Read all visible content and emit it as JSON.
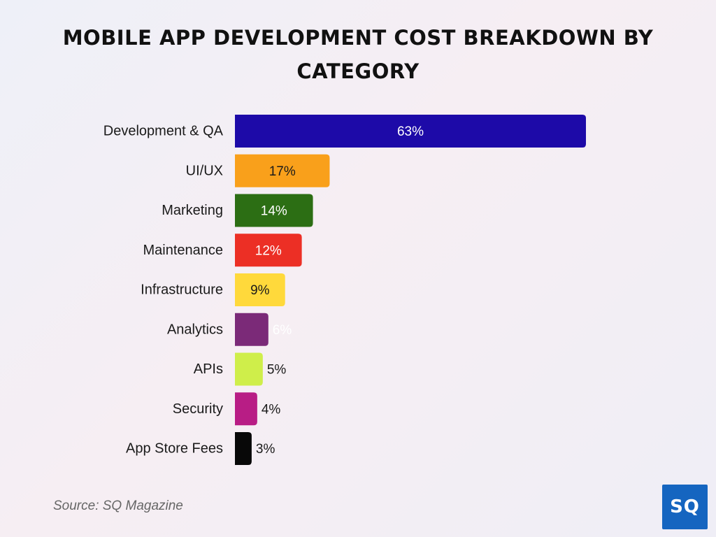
{
  "chart_data": {
    "type": "bar",
    "orientation": "horizontal",
    "title": "MOBILE APP DEVELOPMENT COST BREAKDOWN BY CATEGORY",
    "categories": [
      "Development & QA",
      "UI/UX",
      "Marketing",
      "Maintenance",
      "Infrastructure",
      "Analytics",
      "APIs",
      "Security",
      "App Store Fees"
    ],
    "values": [
      63,
      17,
      14,
      12,
      9,
      6,
      5,
      4,
      3
    ],
    "value_labels": [
      "63%",
      "17%",
      "14%",
      "12%",
      "9%",
      "6%",
      "5%",
      "4%",
      "3%"
    ],
    "colors": [
      "#1d0aa8",
      "#f9a01b",
      "#2c6e14",
      "#ec2f25",
      "#ffd93b",
      "#7b2a78",
      "#cfee4a",
      "#b81d85",
      "#080808"
    ],
    "label_colors": [
      "#ffffff",
      "#1a1a1a",
      "#ffffff",
      "#ffffff",
      "#1a1a1a",
      "#ffffff",
      "#1a1a1a",
      "#1a1a1a",
      "#1a1a1a"
    ],
    "xlim": [
      0,
      63
    ],
    "grid": false,
    "legend": "none"
  },
  "source": "Source: SQ Magazine",
  "logo_text": "SQ"
}
